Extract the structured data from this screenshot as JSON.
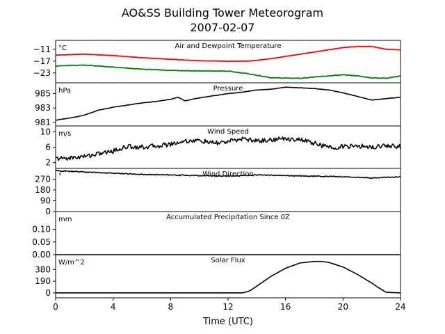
{
  "title": "AO&SS Building Tower Meteorogram",
  "subtitle": "2007-02-07",
  "xlabel": "Time (UTC)",
  "chart_data": [
    {
      "type": "line",
      "title": "Air and Dewpoint Temperature",
      "unit": "°C",
      "ylim": [
        -28,
        -6.5
      ],
      "yticks": [
        -11,
        -17,
        -23
      ],
      "x": [
        0,
        2,
        4,
        6,
        8,
        10,
        12,
        13.5,
        15,
        17,
        19,
        20,
        21,
        22,
        23,
        24
      ],
      "series": [
        {
          "color": "#ff0000",
          "values": [
            -14,
            -13.5,
            -14.2,
            -15.3,
            -16.1,
            -16.8,
            -17.1,
            -17.0,
            -15.8,
            -13.5,
            -11.3,
            -10.2,
            -9.6,
            -9.6,
            -11.0,
            -11.3
          ]
        },
        {
          "color": "#008000",
          "values": [
            -19.5,
            -19.0,
            -20.1,
            -21.1,
            -21.7,
            -22.0,
            -22.1,
            -23.5,
            -25.5,
            -25.7,
            -24.5,
            -24.0,
            -24.5,
            -25.5,
            -25.7,
            -24.5
          ]
        }
      ]
    },
    {
      "type": "line",
      "title": "Pressure",
      "unit": "hPa",
      "ylim": [
        980.5,
        986.5
      ],
      "yticks": [
        985,
        983,
        981
      ],
      "x": [
        0,
        1,
        2,
        3,
        4,
        5,
        6,
        7,
        8,
        8.5,
        9,
        10,
        11,
        12,
        13,
        14,
        15,
        16,
        17,
        18,
        19,
        20,
        21,
        22,
        23,
        24
      ],
      "series": [
        {
          "color": "#000000",
          "values": [
            981.3,
            981.6,
            982.0,
            982.7,
            983.1,
            983.4,
            983.7,
            983.9,
            984.2,
            984.5,
            984.0,
            984.4,
            984.7,
            985.0,
            985.2,
            985.5,
            985.6,
            985.9,
            985.8,
            985.7,
            985.5,
            985.1,
            984.6,
            984.1,
            984.3,
            984.5
          ]
        }
      ]
    },
    {
      "type": "line",
      "title": "Wind Speed",
      "unit": "m/s",
      "ylim": [
        0.5,
        11.5
      ],
      "yticks": [
        10,
        6,
        2
      ],
      "x": [
        0,
        1,
        2,
        3,
        4,
        5,
        6,
        7,
        8,
        9,
        10,
        11,
        12,
        13,
        14,
        15,
        16,
        17,
        18,
        19,
        20,
        21,
        22,
        23,
        24
      ],
      "series": [
        {
          "color": "#000000",
          "values": [
            3.0,
            3.2,
            3.6,
            4.3,
            5.0,
            6.2,
            6.0,
            6.3,
            6.8,
            7.6,
            7.7,
            7.0,
            7.4,
            8.2,
            7.6,
            7.9,
            8.2,
            8.0,
            7.0,
            5.9,
            6.1,
            6.3,
            6.0,
            6.5,
            6.1
          ]
        }
      ]
    },
    {
      "type": "line",
      "title": "Wind Direction",
      "unit": "°",
      "ylim": [
        0,
        360
      ],
      "yticks": [
        270,
        180,
        90,
        0
      ],
      "x": [
        0,
        2,
        4,
        6,
        8,
        10,
        12,
        14,
        16,
        18,
        20,
        22,
        24
      ],
      "series": [
        {
          "color": "#000000",
          "values": [
            340,
            330,
            320,
            310,
            305,
            300,
            295,
            305,
            300,
            295,
            290,
            280,
            290
          ]
        }
      ]
    },
    {
      "type": "line",
      "title": "Accumulated Precipitation Since 0Z",
      "unit": "mm",
      "ylim": [
        0,
        0.17
      ],
      "yticks": [
        0.1,
        0.05,
        0.0
      ],
      "ytick_labels": [
        "0.10",
        "0.05",
        "0.00"
      ],
      "x": [
        0,
        24
      ],
      "series": [
        {
          "color": "#000000",
          "values": [
            0,
            0
          ]
        }
      ]
    },
    {
      "type": "line",
      "title": "Solar Flux",
      "unit": "W/m^2",
      "ylim": [
        -80,
        620
      ],
      "yticks": [
        380,
        190,
        0
      ],
      "x": [
        0,
        13,
        13.5,
        14,
        15,
        16,
        17,
        18,
        18.5,
        19,
        20,
        21,
        22,
        22.5,
        23,
        24
      ],
      "series": [
        {
          "color": "#000000",
          "values": [
            0,
            0,
            30,
            110,
            270,
            400,
            485,
            510,
            510,
            495,
            420,
            300,
            160,
            80,
            10,
            0
          ]
        }
      ]
    }
  ],
  "x_axis": {
    "xlim": [
      0,
      24
    ],
    "xticks": [
      0,
      4,
      8,
      12,
      16,
      20,
      24
    ]
  }
}
